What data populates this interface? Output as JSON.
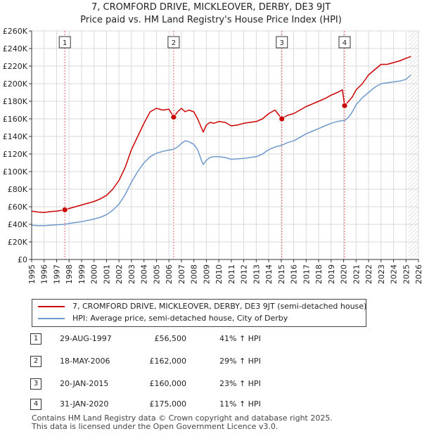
{
  "title_line1": "7, CROMFORD DRIVE, MICKLEOVER, DERBY, DE3 9JT",
  "title_line2": "Price paid vs. HM Land Registry's House Price Index (HPI)",
  "chart_data": {
    "type": "line",
    "title": "7, CROMFORD DRIVE, MICKLEOVER, DERBY, DE3 9JT — Price paid vs. HM Land Registry's House Price Index (HPI)",
    "xlim": [
      1995,
      2026
    ],
    "ylim": [
      0,
      260000
    ],
    "x_ticks": [
      1995,
      1996,
      1997,
      1998,
      1999,
      2000,
      2001,
      2002,
      2003,
      2004,
      2005,
      2006,
      2007,
      2008,
      2009,
      2010,
      2011,
      2012,
      2013,
      2014,
      2015,
      2016,
      2017,
      2018,
      2019,
      2020,
      2021,
      2022,
      2023,
      2024,
      2025,
      2026
    ],
    "y_ticks": [
      0,
      20000,
      40000,
      60000,
      80000,
      100000,
      120000,
      140000,
      160000,
      180000,
      200000,
      220000,
      240000,
      260000
    ],
    "y_tick_labels": [
      "£0",
      "£20K",
      "£40K",
      "£60K",
      "£80K",
      "£100K",
      "£120K",
      "£140K",
      "£160K",
      "£180K",
      "£200K",
      "£220K",
      "£240K",
      "£260K"
    ],
    "grid": true,
    "series": [
      {
        "name": "7, CROMFORD DRIVE, MICKLEOVER, DERBY, DE3 9JT (semi-detached house)",
        "color": "#cc0000",
        "x": [
          1995.0,
          1995.5,
          1996.0,
          1996.5,
          1997.0,
          1997.66,
          1998.0,
          1998.5,
          1999.0,
          1999.5,
          2000.0,
          2000.5,
          2001.0,
          2001.5,
          2002.0,
          2002.5,
          2003.0,
          2003.5,
          2004.0,
          2004.5,
          2005.0,
          2005.5,
          2006.0,
          2006.38,
          2006.7,
          2007.0,
          2007.3,
          2007.6,
          2008.0,
          2008.3,
          2008.6,
          2008.75,
          2009.0,
          2009.3,
          2009.6,
          2010.0,
          2010.5,
          2011.0,
          2011.5,
          2012.0,
          2012.5,
          2013.0,
          2013.5,
          2014.0,
          2014.5,
          2015.05,
          2015.5,
          2016.0,
          2016.5,
          2017.0,
          2017.5,
          2018.0,
          2018.5,
          2019.0,
          2019.5,
          2019.9,
          2020.08,
          2020.4,
          2020.7,
          2021.0,
          2021.5,
          2022.0,
          2022.5,
          2023.0,
          2023.5,
          2024.0,
          2024.5,
          2025.0,
          2025.4
        ],
        "values": [
          55000,
          54000,
          53500,
          54500,
          55000,
          56500,
          58000,
          60000,
          62000,
          64000,
          66000,
          69000,
          73000,
          80000,
          90000,
          105000,
          125000,
          140000,
          155000,
          168000,
          172000,
          170000,
          171000,
          162000,
          168000,
          172000,
          168000,
          170000,
          168000,
          160000,
          150000,
          145000,
          153000,
          156000,
          155000,
          157000,
          156000,
          152000,
          153000,
          155000,
          156000,
          157000,
          160000,
          166000,
          170000,
          160000,
          164000,
          166000,
          170000,
          174000,
          177000,
          180000,
          183000,
          187000,
          190000,
          193000,
          175000,
          180000,
          185000,
          193000,
          200000,
          210000,
          216000,
          222000,
          222000,
          224000,
          226000,
          229000,
          231000
        ]
      },
      {
        "name": "HPI: Average price, semi-detached house, City of Derby",
        "color": "#6f9acd",
        "x": [
          1995.0,
          1995.5,
          1996.0,
          1996.5,
          1997.0,
          1997.66,
          1998.0,
          1998.5,
          1999.0,
          1999.5,
          2000.0,
          2000.5,
          2001.0,
          2001.5,
          2002.0,
          2002.5,
          2003.0,
          2003.5,
          2004.0,
          2004.5,
          2005.0,
          2005.5,
          2006.0,
          2006.38,
          2006.7,
          2007.0,
          2007.3,
          2007.6,
          2008.0,
          2008.3,
          2008.6,
          2008.75,
          2009.0,
          2009.3,
          2009.6,
          2010.0,
          2010.5,
          2011.0,
          2011.5,
          2012.0,
          2012.5,
          2013.0,
          2013.5,
          2014.0,
          2014.5,
          2015.05,
          2015.5,
          2016.0,
          2016.5,
          2017.0,
          2017.5,
          2018.0,
          2018.5,
          2019.0,
          2019.5,
          2019.9,
          2020.08,
          2020.4,
          2020.7,
          2021.0,
          2021.5,
          2022.0,
          2022.5,
          2023.0,
          2023.5,
          2024.0,
          2024.5,
          2025.0,
          2025.4
        ],
        "values": [
          39000,
          38500,
          38500,
          39000,
          39500,
          40000,
          41000,
          42000,
          43000,
          44500,
          46000,
          48000,
          51000,
          56000,
          63000,
          74000,
          88000,
          100000,
          110000,
          117000,
          121000,
          123000,
          124500,
          125500,
          128000,
          132000,
          135000,
          134000,
          131000,
          125000,
          113000,
          108000,
          113000,
          116000,
          117000,
          117000,
          116000,
          114000,
          114500,
          115000,
          116000,
          117000,
          120000,
          125000,
          128000,
          130000,
          133000,
          135000,
          139000,
          143000,
          146000,
          149000,
          152000,
          155000,
          157000,
          158000,
          158000,
          162000,
          168000,
          176000,
          184000,
          190000,
          196000,
          200000,
          201000,
          202000,
          203000,
          205000,
          210000
        ]
      }
    ],
    "sales": [
      {
        "label": "1",
        "x": 1997.66,
        "value": 56500
      },
      {
        "label": "2",
        "x": 2006.38,
        "value": 162000
      },
      {
        "label": "3",
        "x": 2015.05,
        "value": 160000
      },
      {
        "label": "4",
        "x": 2020.08,
        "value": 175000
      }
    ],
    "forecast_start": 2025.2
  },
  "legend": {
    "property_label": "7, CROMFORD DRIVE, MICKLEOVER, DERBY, DE3 9JT (semi-detached house)",
    "hpi_label": "HPI: Average price, semi-detached house, City of Derby",
    "property_color": "#cc0000",
    "hpi_color": "#6f9acd"
  },
  "sales_table": [
    {
      "num": "1",
      "date": "29-AUG-1997",
      "price": "£56,500",
      "hpi": "41% ↑ HPI"
    },
    {
      "num": "2",
      "date": "18-MAY-2006",
      "price": "£162,000",
      "hpi": "29% ↑ HPI"
    },
    {
      "num": "3",
      "date": "20-JAN-2015",
      "price": "£160,000",
      "hpi": "23% ↑ HPI"
    },
    {
      "num": "4",
      "date": "31-JAN-2020",
      "price": "£175,000",
      "hpi": "11% ↑ HPI"
    }
  ],
  "footer": {
    "line1": "Contains HM Land Registry data © Crown copyright and database right 2025.",
    "line2": "This data is licensed under the Open Government Licence v3.0."
  }
}
